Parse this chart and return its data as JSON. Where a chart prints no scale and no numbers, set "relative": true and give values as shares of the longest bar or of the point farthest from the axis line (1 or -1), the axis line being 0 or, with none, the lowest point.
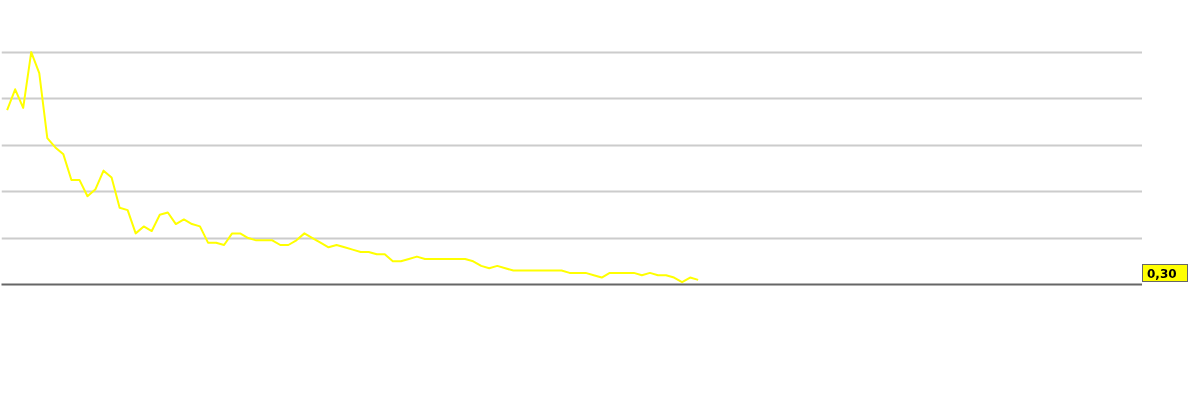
{
  "chart_data": {
    "type": "line",
    "relative": true,
    "grid": "y",
    "categories": [
      null,
      null,
      null,
      null,
      null,
      null,
      null,
      null,
      null,
      null,
      null,
      null,
      null,
      null,
      null,
      null,
      null,
      null,
      null,
      null,
      null,
      null,
      null,
      null,
      null,
      null,
      null,
      null,
      null,
      null,
      null,
      null,
      null,
      null,
      null,
      null,
      null,
      null,
      null,
      null,
      null,
      null,
      null,
      null,
      null,
      null,
      null,
      null,
      null,
      null,
      null,
      null,
      null,
      null,
      null,
      null,
      null,
      null,
      null,
      null,
      null,
      null,
      null,
      null,
      null,
      null,
      null,
      null,
      null,
      null,
      null,
      null,
      null,
      null,
      null,
      null,
      null,
      null,
      null,
      null,
      null,
      null,
      null,
      null,
      null,
      null,
      null,
      null,
      null,
      null,
      null,
      null,
      null,
      null,
      null,
      null,
      null,
      null,
      null,
      null,
      null,
      null,
      null,
      null,
      null,
      null,
      null,
      null,
      null,
      null,
      null,
      null,
      null,
      null,
      null,
      null,
      null,
      null,
      null,
      null,
      null,
      null,
      null,
      null,
      null,
      null,
      null,
      null,
      null,
      null,
      null,
      null,
      null,
      null,
      null,
      null,
      null,
      null,
      null,
      null,
      null,
      null
    ],
    "series": [
      {
        "color": "#ffff00",
        "values": [
          0.75,
          0.84,
          0.76,
          1.0,
          0.91,
          0.63,
          0.59,
          0.56,
          0.45,
          0.45,
          0.38,
          0.41,
          0.49,
          0.46,
          0.33,
          0.32,
          0.22,
          0.25,
          0.23,
          0.3,
          0.31,
          0.26,
          0.28,
          0.26,
          0.25,
          0.18,
          0.18,
          0.17,
          0.22,
          0.22,
          0.2,
          0.19,
          0.19,
          0.19,
          0.17,
          0.17,
          0.19,
          0.22,
          0.2,
          0.18,
          0.16,
          0.17,
          0.16,
          0.15,
          0.14,
          0.14,
          0.13,
          0.13,
          0.1,
          0.1,
          0.11,
          0.12,
          0.11,
          0.11,
          0.11,
          0.11,
          0.11,
          0.11,
          0.1,
          0.08,
          0.07,
          0.08,
          0.07,
          0.06,
          0.06,
          0.06,
          0.06,
          0.06,
          0.06,
          0.06,
          0.05,
          0.05,
          0.05,
          0.04,
          0.03,
          0.05,
          0.05,
          0.05,
          0.05,
          0.04,
          0.05,
          0.04,
          0.04,
          0.03,
          0.01,
          0.03,
          0.02,
          null,
          null,
          null,
          null,
          null,
          null,
          null,
          null,
          null,
          null,
          null,
          null,
          null,
          null,
          null,
          null,
          null,
          null,
          null,
          null,
          null,
          null,
          null,
          null,
          null,
          null,
          null,
          null,
          null,
          null,
          null,
          null,
          null,
          null,
          null,
          null,
          null,
          null,
          null,
          null,
          null,
          null,
          null,
          null,
          null,
          null,
          null,
          null,
          null,
          null,
          null,
          null,
          null,
          null,
          null
        ]
      }
    ],
    "annotations": [
      "0,30"
    ]
  }
}
